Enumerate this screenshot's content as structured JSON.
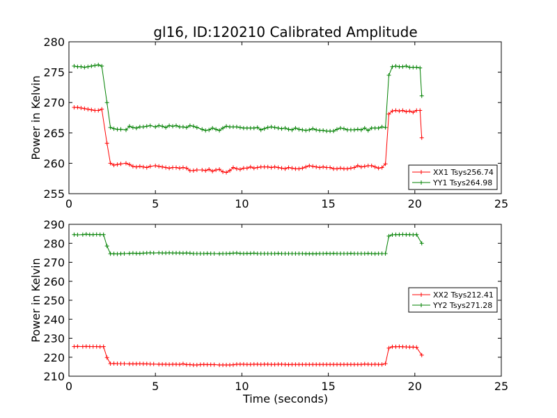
{
  "chart_data": [
    {
      "type": "line",
      "title": "gl16, ID:120210 Calibrated Amplitude",
      "xlabel": "",
      "ylabel": "Power in Kelvin",
      "xlim": [
        0,
        25
      ],
      "ylim": [
        255,
        280
      ],
      "xticks": [
        "0",
        "5",
        "10",
        "15",
        "20",
        "25"
      ],
      "yticks": [
        "255",
        "260",
        "265",
        "270",
        "275",
        "280"
      ],
      "xtick_values": [
        0,
        5,
        10,
        15,
        20,
        25
      ],
      "ytick_values": [
        255,
        260,
        265,
        270,
        275,
        280
      ],
      "legend_position": "lower-right",
      "x": [
        0.3,
        0.5,
        0.7,
        0.9,
        1.1,
        1.3,
        1.5,
        1.7,
        1.9,
        2.2,
        2.4,
        2.6,
        2.8,
        3.0,
        3.3,
        3.5,
        3.7,
        3.9,
        4.1,
        4.3,
        4.5,
        4.7,
        5.0,
        5.2,
        5.4,
        5.6,
        5.8,
        6.0,
        6.2,
        6.4,
        6.6,
        6.8,
        7.0,
        7.2,
        7.4,
        7.7,
        7.9,
        8.1,
        8.3,
        8.5,
        8.7,
        8.9,
        9.1,
        9.3,
        9.5,
        9.7,
        9.9,
        10.1,
        10.3,
        10.5,
        10.7,
        10.9,
        11.1,
        11.3,
        11.5,
        11.7,
        11.9,
        12.1,
        12.3,
        12.5,
        12.7,
        12.9,
        13.1,
        13.3,
        13.5,
        13.7,
        13.9,
        14.1,
        14.3,
        14.5,
        14.7,
        14.9,
        15.1,
        15.3,
        15.5,
        15.7,
        15.9,
        16.1,
        16.3,
        16.5,
        16.7,
        16.9,
        17.1,
        17.3,
        17.5,
        17.7,
        17.9,
        18.1,
        18.3,
        18.5,
        18.7,
        18.9,
        19.1,
        19.3,
        19.5,
        19.7,
        19.9,
        20.1,
        20.3,
        20.4
      ],
      "series": [
        {
          "name": "XX1 Tsys256.74",
          "color": "#ff0000",
          "values": [
            269.2,
            269.2,
            269.1,
            269.0,
            268.9,
            268.8,
            268.7,
            268.7,
            268.9,
            263.3,
            260.0,
            259.7,
            259.8,
            259.9,
            260.0,
            259.8,
            259.5,
            259.4,
            259.5,
            259.4,
            259.3,
            259.5,
            259.6,
            259.5,
            259.4,
            259.3,
            259.2,
            259.3,
            259.3,
            259.2,
            259.3,
            259.2,
            258.8,
            258.8,
            258.9,
            258.9,
            258.8,
            259.0,
            258.7,
            258.9,
            259.0,
            258.6,
            258.5,
            258.8,
            259.3,
            259.1,
            259.0,
            259.2,
            259.2,
            259.4,
            259.2,
            259.3,
            259.4,
            259.4,
            259.4,
            259.3,
            259.4,
            259.3,
            259.2,
            259.1,
            259.3,
            259.2,
            259.1,
            259.1,
            259.2,
            259.4,
            259.6,
            259.5,
            259.4,
            259.3,
            259.4,
            259.3,
            259.3,
            259.1,
            259.1,
            259.2,
            259.1,
            259.1,
            259.2,
            259.3,
            259.6,
            259.4,
            259.5,
            259.6,
            259.6,
            259.4,
            259.2,
            259.3,
            259.9,
            268.1,
            268.6,
            268.7,
            268.6,
            268.7,
            268.5,
            268.6,
            268.4,
            268.7,
            268.7,
            264.2
          ]
        },
        {
          "name": "YY1 Tsys264.98",
          "color": "#008000",
          "values": [
            276.0,
            275.9,
            275.9,
            275.8,
            275.9,
            276.0,
            276.1,
            276.2,
            276.0,
            270.0,
            265.9,
            265.7,
            265.6,
            265.6,
            265.5,
            266.1,
            265.9,
            265.8,
            266.0,
            266.0,
            266.1,
            266.2,
            266.0,
            266.2,
            266.1,
            265.9,
            266.2,
            266.1,
            266.2,
            266.0,
            266.0,
            265.9,
            266.2,
            266.1,
            265.9,
            265.6,
            265.4,
            265.5,
            265.8,
            265.6,
            265.4,
            265.8,
            266.1,
            266.0,
            266.0,
            266.0,
            265.9,
            265.8,
            265.8,
            265.8,
            265.8,
            265.9,
            265.5,
            265.7,
            265.9,
            266.0,
            265.9,
            265.8,
            265.7,
            265.8,
            265.6,
            265.5,
            265.8,
            265.6,
            265.5,
            265.4,
            265.5,
            265.7,
            265.5,
            265.4,
            265.4,
            265.3,
            265.3,
            265.3,
            265.6,
            265.8,
            265.7,
            265.5,
            265.5,
            265.5,
            265.6,
            265.5,
            265.8,
            265.4,
            265.8,
            265.8,
            265.8,
            266.0,
            265.9,
            274.5,
            275.9,
            276.0,
            275.9,
            275.9,
            276.0,
            275.8,
            275.8,
            275.8,
            275.7,
            271.1
          ]
        }
      ]
    },
    {
      "type": "line",
      "title": "",
      "xlabel": "Time (seconds)",
      "ylabel": "Power in Kelvin",
      "xlim": [
        0,
        25
      ],
      "ylim": [
        210,
        290
      ],
      "xticks": [
        "0",
        "5",
        "10",
        "15",
        "20",
        "25"
      ],
      "yticks": [
        "210",
        "220",
        "230",
        "240",
        "250",
        "260",
        "270",
        "280",
        "290"
      ],
      "xtick_values": [
        0,
        5,
        10,
        15,
        20,
        25
      ],
      "ytick_values": [
        210,
        220,
        230,
        240,
        250,
        260,
        270,
        280,
        290
      ],
      "legend_position": "center-right",
      "x": [
        0.3,
        0.5,
        0.8,
        1.0,
        1.2,
        1.4,
        1.6,
        1.8,
        2.0,
        2.2,
        2.4,
        2.6,
        2.8,
        3.0,
        3.2,
        3.5,
        3.7,
        3.9,
        4.1,
        4.3,
        4.5,
        4.7,
        4.9,
        5.2,
        5.4,
        5.6,
        5.8,
        6.0,
        6.2,
        6.4,
        6.6,
        6.8,
        7.0,
        7.2,
        7.4,
        7.6,
        7.8,
        8.0,
        8.2,
        8.4,
        8.7,
        8.9,
        9.1,
        9.3,
        9.5,
        9.7,
        9.9,
        10.1,
        10.3,
        10.5,
        10.7,
        10.9,
        11.1,
        11.3,
        11.5,
        11.7,
        11.9,
        12.1,
        12.3,
        12.5,
        12.7,
        12.9,
        13.1,
        13.3,
        13.5,
        13.7,
        13.9,
        14.1,
        14.3,
        14.5,
        14.7,
        14.9,
        15.1,
        15.3,
        15.5,
        15.7,
        15.9,
        16.1,
        16.3,
        16.5,
        16.7,
        16.9,
        17.1,
        17.3,
        17.5,
        17.7,
        17.9,
        18.1,
        18.3,
        18.5,
        18.7,
        18.9,
        19.1,
        19.3,
        19.5,
        19.7,
        19.9,
        20.1,
        20.4
      ],
      "series": [
        {
          "name": "XX2 Tsys212.41",
          "color": "#ff0000",
          "values": [
            225.6,
            225.7,
            225.6,
            225.7,
            225.6,
            225.6,
            225.6,
            225.5,
            225.6,
            219.8,
            216.6,
            216.7,
            216.6,
            216.6,
            216.6,
            216.5,
            216.5,
            216.5,
            216.6,
            216.5,
            216.5,
            216.4,
            216.4,
            216.3,
            216.3,
            216.3,
            216.2,
            216.3,
            216.3,
            216.2,
            216.5,
            216.1,
            216.1,
            215.9,
            215.9,
            216.1,
            216.2,
            216.1,
            216.1,
            216.1,
            215.9,
            215.9,
            215.9,
            215.9,
            216.0,
            216.3,
            216.3,
            216.3,
            216.2,
            216.2,
            216.3,
            216.3,
            216.2,
            216.3,
            216.3,
            216.2,
            216.2,
            216.3,
            216.3,
            216.2,
            216.1,
            216.2,
            216.2,
            216.2,
            216.2,
            216.2,
            216.2,
            216.2,
            216.2,
            216.2,
            216.2,
            216.2,
            216.2,
            216.2,
            216.2,
            216.2,
            216.2,
            216.2,
            216.2,
            216.2,
            216.2,
            216.2,
            216.4,
            216.3,
            216.2,
            216.3,
            216.2,
            216.2,
            216.6,
            224.8,
            225.5,
            225.5,
            225.6,
            225.5,
            225.4,
            225.3,
            225.3,
            225.2,
            221.1
          ]
        },
        {
          "name": "YY2 Tsys271.28",
          "color": "#008000",
          "values": [
            284.6,
            284.5,
            284.6,
            284.8,
            284.6,
            284.6,
            284.7,
            284.6,
            284.6,
            278.6,
            274.5,
            274.5,
            274.4,
            274.5,
            274.6,
            274.7,
            274.8,
            274.7,
            274.7,
            274.8,
            274.9,
            275.0,
            274.9,
            275.0,
            274.9,
            274.9,
            275.0,
            274.9,
            274.9,
            274.9,
            274.8,
            274.9,
            274.8,
            274.6,
            274.6,
            274.6,
            274.6,
            274.7,
            274.6,
            274.6,
            274.5,
            274.6,
            274.6,
            274.7,
            274.8,
            274.9,
            274.7,
            274.6,
            274.7,
            274.7,
            274.8,
            274.6,
            274.6,
            274.6,
            274.6,
            274.6,
            274.6,
            274.7,
            274.6,
            274.6,
            274.6,
            274.6,
            274.6,
            274.6,
            274.6,
            274.5,
            274.5,
            274.5,
            274.5,
            274.6,
            274.6,
            274.7,
            274.6,
            274.7,
            274.6,
            274.6,
            274.6,
            274.6,
            274.7,
            274.6,
            274.6,
            274.6,
            274.6,
            274.7,
            274.6,
            274.5,
            274.6,
            274.6,
            274.6,
            283.8,
            284.5,
            284.6,
            284.6,
            284.7,
            284.6,
            284.6,
            284.5,
            284.6,
            280.0
          ]
        }
      ]
    }
  ]
}
